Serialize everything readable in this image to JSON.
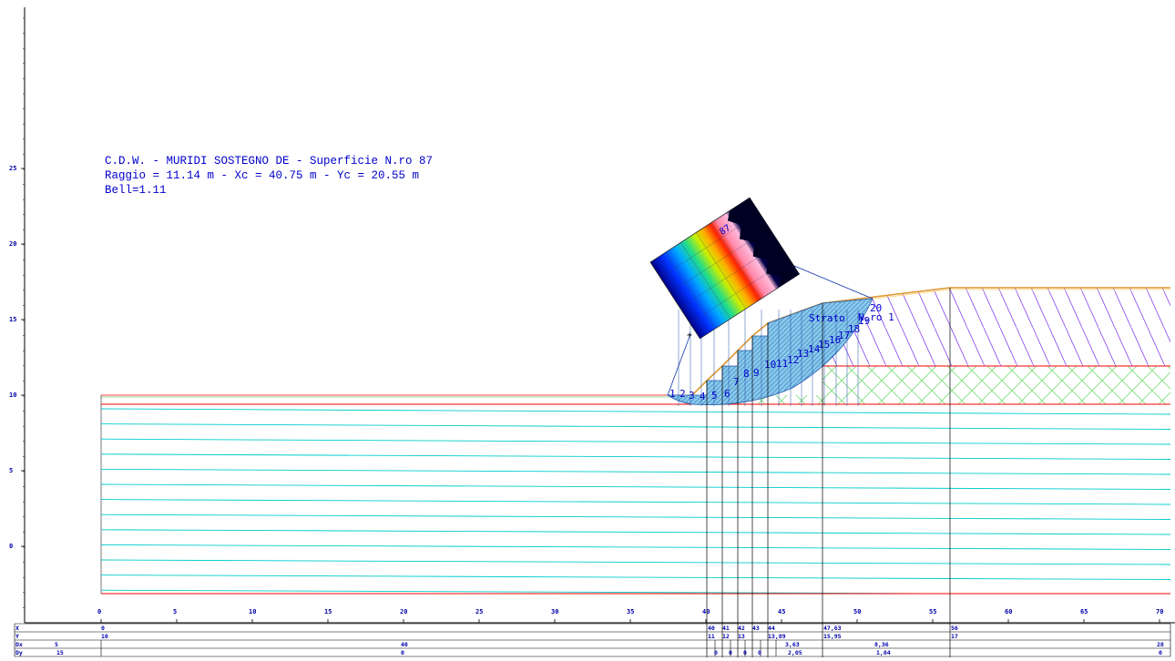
{
  "header": {
    "line1": "C.D.W. - MURIDI SOSTEGNO DE - Superficie N.ro 87",
    "line2": "Raggio = 11.14 m - Xc = 40.75 m - Yc = 20.55 m",
    "line3": "Bell=1.11"
  },
  "axes": {
    "y_ticks": [
      "25",
      "20",
      "15",
      "10",
      "5",
      "0"
    ],
    "x_ticks": [
      "0",
      "5",
      "10",
      "15",
      "20",
      "25",
      "30",
      "35",
      "40",
      "45",
      "50",
      "55",
      "60",
      "65",
      "70"
    ]
  },
  "labels": {
    "inset_surface": "87",
    "strato": "Strato",
    "strato_no": "N.ro 1",
    "slices": [
      "1",
      "2",
      "3",
      "4",
      "5",
      "6",
      "7",
      "8",
      "9",
      "10",
      "11",
      "12",
      "13",
      "14",
      "15",
      "16",
      "17",
      "18",
      "19",
      "20"
    ]
  },
  "table": {
    "row_labels": [
      "X",
      "Y",
      "Dx",
      "Dy"
    ],
    "x_values": [
      "0",
      "40",
      "41",
      "42",
      "43",
      "44",
      "47,63",
      "56"
    ],
    "y_values": [
      "10",
      "11",
      "12",
      "13",
      "13,89",
      "15,95",
      "17"
    ],
    "dx_values": [
      "5",
      "40",
      "3,63",
      "8,36",
      "28"
    ],
    "dy_values": [
      "15",
      "0",
      "0",
      "0",
      "0",
      "0",
      "2,05",
      "1,04",
      "0"
    ]
  },
  "colors": {
    "axis": "#000000",
    "text": "#0000cc",
    "layer_boundary": "#ff0000",
    "water_lines": "#00cccc",
    "cross_hatch": "#66dd66",
    "diag_hatch": "#7733dd",
    "slice_fill": "#88c8ee",
    "ground": "#dd9933"
  }
}
